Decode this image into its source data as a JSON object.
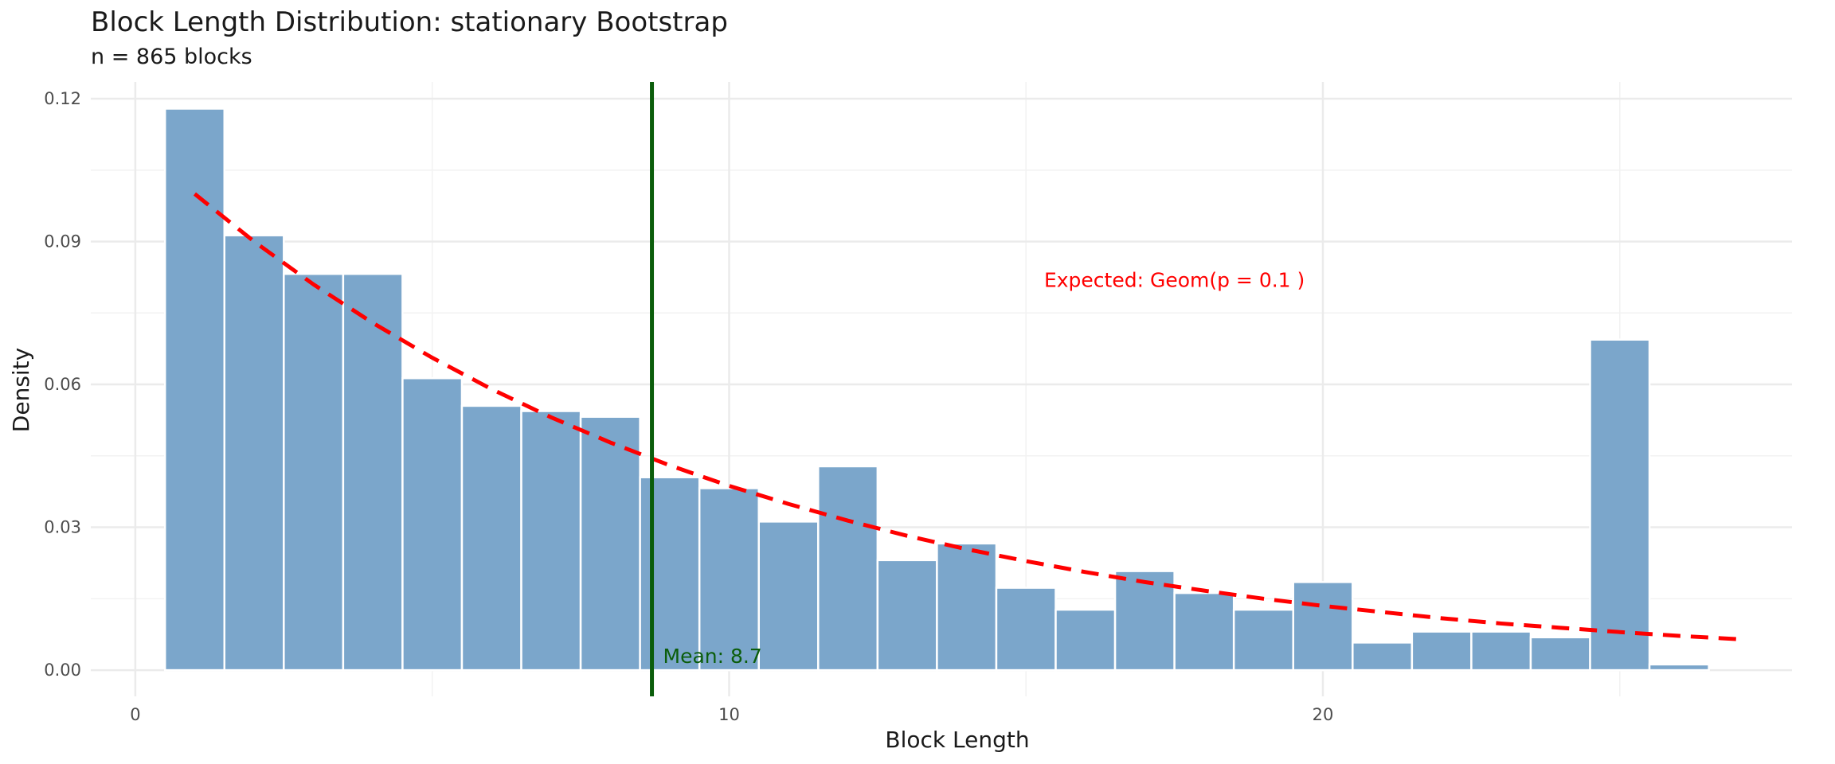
{
  "chart_data": {
    "type": "bar",
    "title": "Block Length Distribution: stationary Bootstrap",
    "subtitle": "n = 865 blocks",
    "xlabel": "Block Length",
    "ylabel": "Density",
    "xlim": [
      -0.75,
      27.9
    ],
    "ylim": [
      -0.0055,
      0.1235
    ],
    "x_ticks": [
      0,
      10,
      20
    ],
    "y_ticks": [
      0.0,
      0.03,
      0.06,
      0.09,
      0.12
    ],
    "y_tick_labels": [
      "0.00",
      "0.03",
      "0.06",
      "0.09",
      "0.12"
    ],
    "grid": true,
    "bin_width": 1,
    "x": [
      1,
      2,
      3,
      4,
      5,
      6,
      7,
      8,
      9,
      10,
      11,
      12,
      13,
      14,
      15,
      16,
      17,
      18,
      19,
      20,
      21,
      22,
      23,
      24,
      25,
      26,
      27
    ],
    "values": [
      0.1179,
      0.0913,
      0.0832,
      0.0832,
      0.0613,
      0.0555,
      0.0544,
      0.0532,
      0.0405,
      0.0382,
      0.0312,
      0.0428,
      0.0231,
      0.0266,
      0.0173,
      0.0127,
      0.0208,
      0.0162,
      0.0127,
      0.0185,
      0.0058,
      0.0081,
      0.0081,
      0.0069,
      0.0694,
      0.0012,
      0.0
    ],
    "bar_color": "#7BA6CB",
    "expected_curve": {
      "label": "Expected: Geom(p = 0.1 )",
      "color": "#FF0000",
      "p": 0.1,
      "x": [
        1,
        2,
        3,
        4,
        5,
        6,
        7,
        8,
        9,
        10,
        11,
        12,
        13,
        14,
        15,
        16,
        17,
        18,
        19,
        20,
        21,
        22,
        23,
        24,
        25,
        26,
        27
      ],
      "y": [
        0.1,
        0.09,
        0.081,
        0.0729,
        0.0656,
        0.059,
        0.0531,
        0.0478,
        0.043,
        0.0387,
        0.0349,
        0.0314,
        0.0282,
        0.0254,
        0.0229,
        0.0206,
        0.0185,
        0.0167,
        0.015,
        0.0135,
        0.0122,
        0.0109,
        0.0098,
        0.0089,
        0.008,
        0.0072,
        0.0065
      ]
    },
    "mean_line": {
      "value": 8.7,
      "label": "Mean: 8.7",
      "color": "#0B5D0B"
    },
    "annotation_expected_pos": {
      "x": 17.5,
      "y": 0.0805
    }
  }
}
